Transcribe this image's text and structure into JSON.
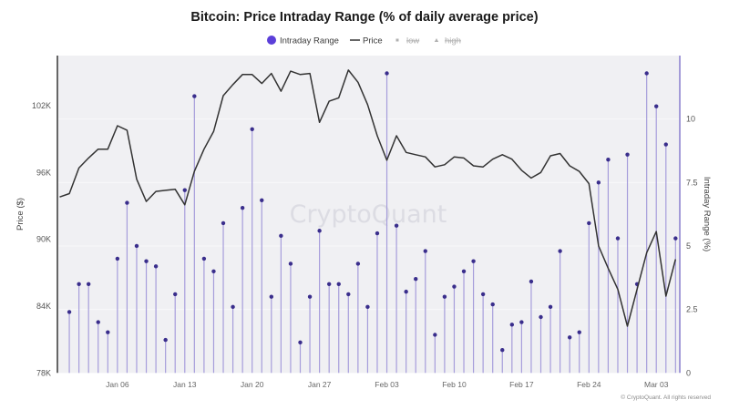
{
  "chart_data": {
    "type": "line",
    "title": "Bitcoin: Price Intraday Range (% of daily average price)",
    "legend_position": "top-center",
    "legend": [
      {
        "name": "Intraday Range",
        "marker": "circle",
        "active": true
      },
      {
        "name": "Price",
        "marker": "line",
        "active": true
      },
      {
        "name": "low",
        "marker": "square",
        "active": false
      },
      {
        "name": "high",
        "marker": "triangle",
        "active": false
      }
    ],
    "ylabel_left": "Price ($)",
    "ylabel_right": "Intraday Range (%)",
    "ylim_left": [
      78000,
      106500
    ],
    "ylim_right": [
      0,
      12.5
    ],
    "yticks_left": [
      {
        "value": 78000,
        "label": "78K"
      },
      {
        "value": 84000,
        "label": "84K"
      },
      {
        "value": 90000,
        "label": "90K"
      },
      {
        "value": 96000,
        "label": "96K"
      },
      {
        "value": 102000,
        "label": "102K"
      }
    ],
    "yticks_right": [
      {
        "value": 0,
        "label": "0"
      },
      {
        "value": 2.5,
        "label": "2.5"
      },
      {
        "value": 5,
        "label": "5"
      },
      {
        "value": 7.5,
        "label": "7.5"
      },
      {
        "value": 10,
        "label": "10"
      }
    ],
    "xticks": [
      "Jan 06",
      "Jan 13",
      "Jan 20",
      "Jan 27",
      "Feb 03",
      "Feb 10",
      "Feb 17",
      "Feb 24",
      "Mar 03"
    ],
    "grid": true,
    "x": [
      "Dec 31",
      "Jan 01",
      "Jan 02",
      "Jan 03",
      "Jan 04",
      "Jan 05",
      "Jan 06",
      "Jan 07",
      "Jan 08",
      "Jan 09",
      "Jan 10",
      "Jan 11",
      "Jan 12",
      "Jan 13",
      "Jan 14",
      "Jan 15",
      "Jan 16",
      "Jan 17",
      "Jan 18",
      "Jan 19",
      "Jan 20",
      "Jan 21",
      "Jan 22",
      "Jan 23",
      "Jan 24",
      "Jan 25",
      "Jan 26",
      "Jan 27",
      "Jan 28",
      "Jan 29",
      "Jan 30",
      "Jan 31",
      "Feb 01",
      "Feb 02",
      "Feb 03",
      "Feb 04",
      "Feb 05",
      "Feb 06",
      "Feb 07",
      "Feb 08",
      "Feb 09",
      "Feb 10",
      "Feb 11",
      "Feb 12",
      "Feb 13",
      "Feb 14",
      "Feb 15",
      "Feb 16",
      "Feb 17",
      "Feb 18",
      "Feb 19",
      "Feb 20",
      "Feb 21",
      "Feb 22",
      "Feb 23",
      "Feb 24",
      "Feb 25",
      "Feb 26",
      "Feb 27",
      "Feb 28",
      "Mar 01",
      "Mar 02",
      "Mar 03",
      "Mar 04",
      "Mar 05"
    ],
    "series": [
      {
        "name": "Price",
        "axis": "left",
        "kind": "line",
        "values": [
          93800,
          94100,
          96400,
          97300,
          98100,
          98100,
          100200,
          99800,
          95400,
          93400,
          94300,
          94400,
          94500,
          93100,
          96100,
          98100,
          99700,
          102900,
          103900,
          104800,
          104800,
          104000,
          104900,
          103300,
          105100,
          104800,
          104900,
          100500,
          102400,
          102700,
          105200,
          104100,
          102100,
          99300,
          97100,
          99300,
          97800,
          97600,
          97400,
          96500,
          96700,
          97400,
          97300,
          96600,
          96500,
          97200,
          97600,
          97200,
          96200,
          95500,
          96000,
          97500,
          97700,
          96600,
          96100,
          95000,
          89400,
          87400,
          85500,
          82200,
          85500,
          88800,
          90700,
          84900,
          88200
        ]
      },
      {
        "name": "Intraday Range",
        "axis": "right",
        "kind": "lollipop",
        "values": [
          null,
          2.4,
          3.5,
          3.5,
          2.0,
          1.6,
          4.5,
          6.7,
          5.0,
          4.4,
          4.2,
          1.3,
          3.1,
          7.2,
          10.9,
          4.5,
          4.0,
          5.9,
          2.6,
          6.5,
          9.6,
          6.8,
          3.0,
          5.4,
          4.3,
          1.2,
          3.0,
          5.6,
          3.5,
          3.5,
          3.1,
          4.3,
          2.6,
          5.5,
          11.8,
          5.8,
          3.2,
          3.7,
          4.8,
          1.5,
          3.0,
          3.4,
          4.0,
          4.4,
          3.1,
          2.7,
          0.9,
          1.9,
          2.0,
          3.6,
          2.2,
          2.6,
          4.8,
          1.4,
          1.6,
          5.9,
          7.5,
          8.4,
          5.3,
          8.6,
          3.5,
          11.8,
          10.5,
          9.0,
          5.3
        ]
      }
    ],
    "watermark": "CryptoQuant",
    "copyright": "© CryptoQuant. All rights reserved"
  },
  "colors": {
    "range_dot": "#3a2e8c",
    "range_stem": "#a69ddb",
    "legend_range": "#5b3fd9",
    "price_line": "#333333",
    "plot_background": "#f0f0f3",
    "left_axis": "#666666",
    "right_axis": "#a49cd8"
  }
}
